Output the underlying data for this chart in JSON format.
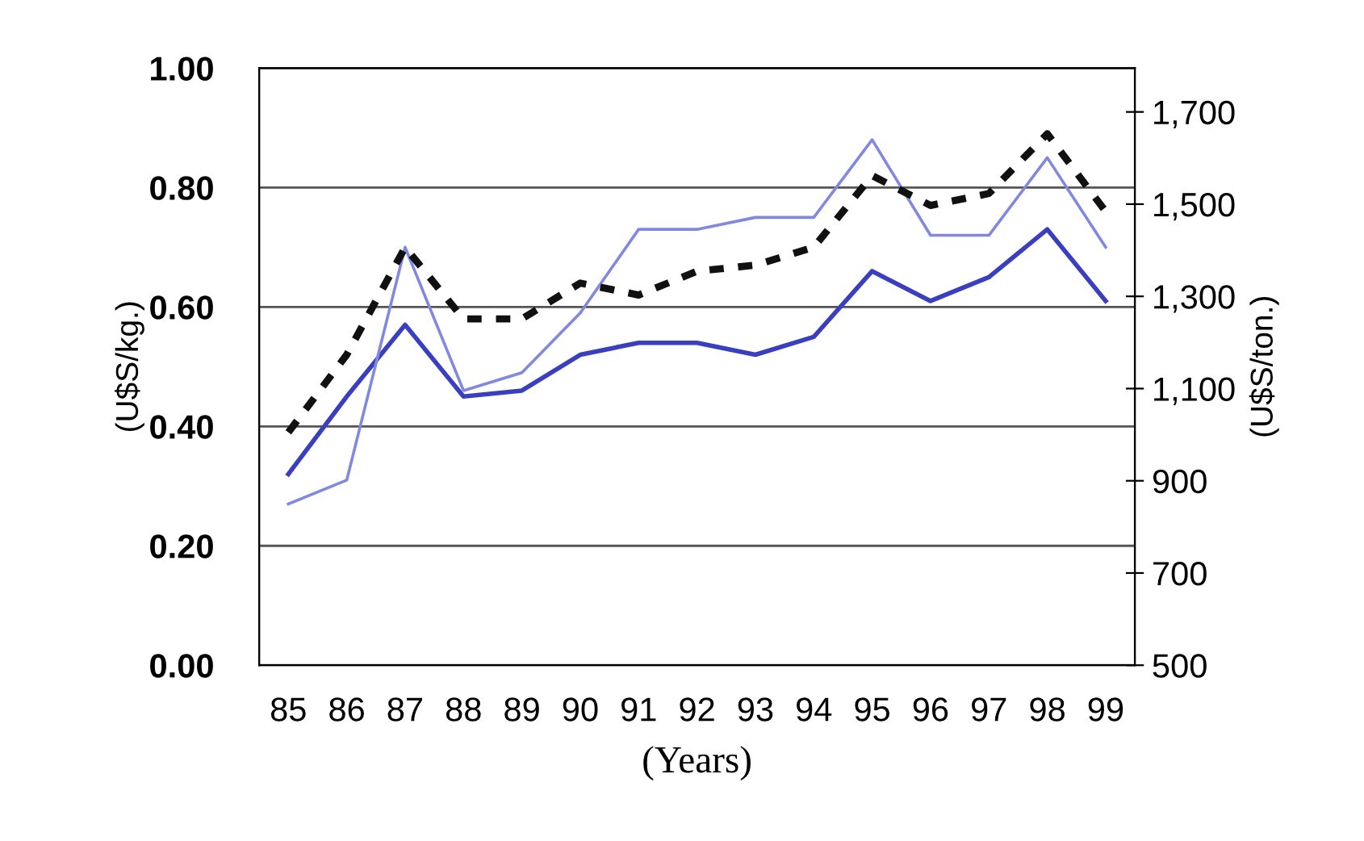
{
  "chart_data": {
    "type": "line",
    "xlabel": "(Years)",
    "ylabel": "(U$S/kg.)",
    "y2label": "(U$S/ton.)",
    "categories": [
      "85",
      "86",
      "87",
      "88",
      "89",
      "90",
      "91",
      "92",
      "93",
      "94",
      "95",
      "96",
      "97",
      "98",
      "99"
    ],
    "series": [
      {
        "color": "#3a3fc0",
        "line_style": "solid",
        "values": [
          0.32,
          0.45,
          0.57,
          0.45,
          0.46,
          0.52,
          0.54,
          0.54,
          0.52,
          0.55,
          0.66,
          0.61,
          0.65,
          0.73,
          0.61
        ]
      },
      {
        "color": "#8088e0",
        "line_style": "solid",
        "values": [
          0.27,
          0.31,
          0.7,
          0.46,
          0.49,
          0.59,
          0.73,
          0.73,
          0.75,
          0.75,
          0.88,
          0.72,
          0.72,
          0.85,
          0.7
        ]
      },
      {
        "color": "#111111",
        "line_style": "dashed",
        "values": [
          0.39,
          0.52,
          0.7,
          0.58,
          0.58,
          0.64,
          0.62,
          0.66,
          0.67,
          0.7,
          0.82,
          0.77,
          0.79,
          0.89,
          0.76
        ]
      }
    ],
    "ylim": [
      0,
      1.0
    ],
    "yticks": [
      {
        "value": 0,
        "label": "0.00"
      },
      {
        "value": 0.2,
        "label": "0.20"
      },
      {
        "value": 0.4,
        "label": "0.40"
      },
      {
        "value": 0.6,
        "label": "0.60"
      },
      {
        "value": 0.8,
        "label": "0.80"
      },
      {
        "value": 1.0,
        "label": "1.00"
      }
    ],
    "y2lim": [
      500,
      1795
    ],
    "y2ticks": [
      500,
      700,
      900,
      {
        "value": 1100,
        "label": "1,100"
      },
      {
        "value": 1300,
        "label": "1,300"
      },
      {
        "value": 1500,
        "label": "1,500"
      },
      {
        "value": 1700,
        "label": "1,700"
      }
    ],
    "grid": "y",
    "marker": "none"
  }
}
